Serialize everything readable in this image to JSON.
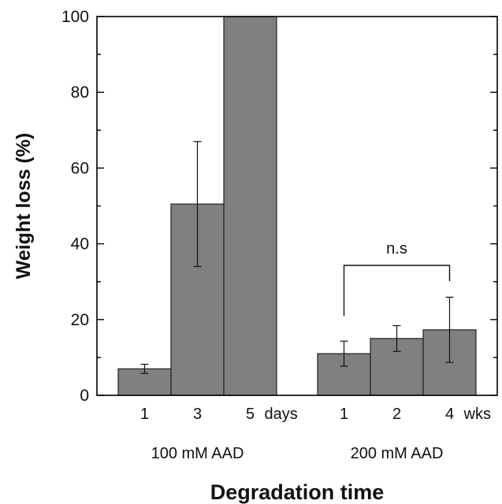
{
  "chart_data": {
    "type": "bar",
    "xlabel": "Degradation time",
    "ylabel": "Weight loss (%)",
    "ylim": [
      0,
      100
    ],
    "yticks": [
      0,
      20,
      40,
      60,
      80,
      100
    ],
    "grid": false,
    "legend": "none",
    "bar_color": "#808080",
    "groups": [
      {
        "label": "100 mM AAD",
        "unit": "days",
        "categories": [
          "1",
          "3",
          "5"
        ],
        "values": [
          7,
          50.5,
          100
        ],
        "error": [
          1.2,
          16.5,
          0
        ]
      },
      {
        "label": "200 mM AAD",
        "unit": "wks",
        "categories": [
          "1",
          "2",
          "4"
        ],
        "values": [
          11,
          15,
          17.3
        ],
        "error": [
          3.3,
          3.4,
          8.6
        ]
      }
    ],
    "annotation": {
      "text": "n.s",
      "group": 1,
      "from": 0,
      "to": 2
    }
  }
}
